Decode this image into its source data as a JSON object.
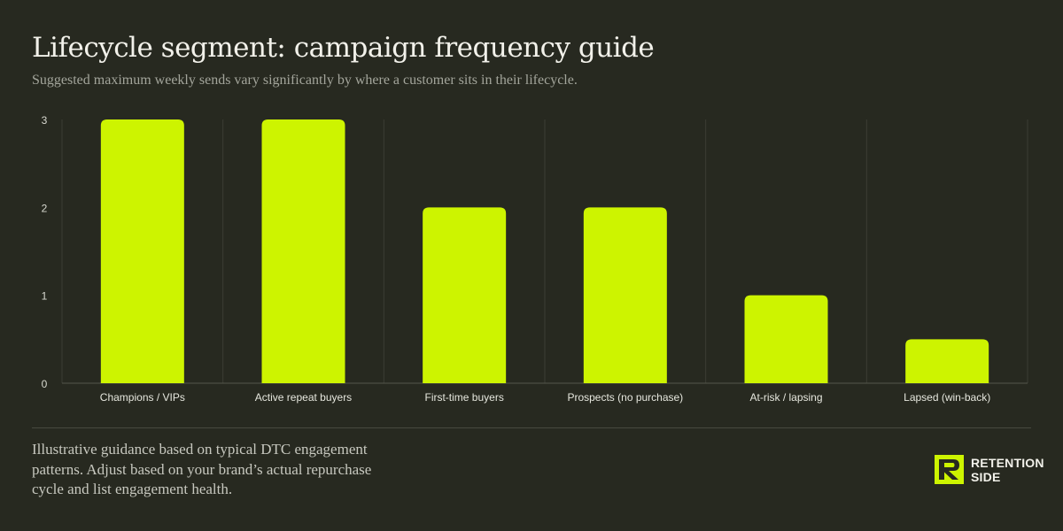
{
  "page": {
    "title": "Lifecycle segment: campaign frequency guide",
    "subtitle": "Suggested maximum weekly sends vary significantly by where a customer sits in their lifecycle.",
    "footnote": "Illustrative guidance based on typical DTC engagement patterns. Adjust based on your brand’s actual repurchase cycle and list engagement health.",
    "logo": {
      "line1": "RETENTION",
      "line2": "SIDE",
      "icon": "retention-side-logo-icon"
    }
  },
  "colors": {
    "background": "#272920",
    "bar": "#cdf400",
    "grid": "#3b3d34",
    "text": "#f2f1ea"
  },
  "chart_data": {
    "type": "bar",
    "categories": [
      "Champions / VIPs",
      "Active repeat buyers",
      "First-time buyers",
      "Prospects (no purchase)",
      "At-risk / lapsing",
      "Lapsed (win-back)"
    ],
    "values": [
      3,
      3,
      2,
      2,
      1,
      0.5
    ],
    "yticks": [
      0,
      1,
      2,
      3
    ],
    "ylim": [
      0,
      3
    ],
    "xlabel": "",
    "ylabel": "",
    "grid": "vertical separators between categories",
    "legend": "none"
  }
}
